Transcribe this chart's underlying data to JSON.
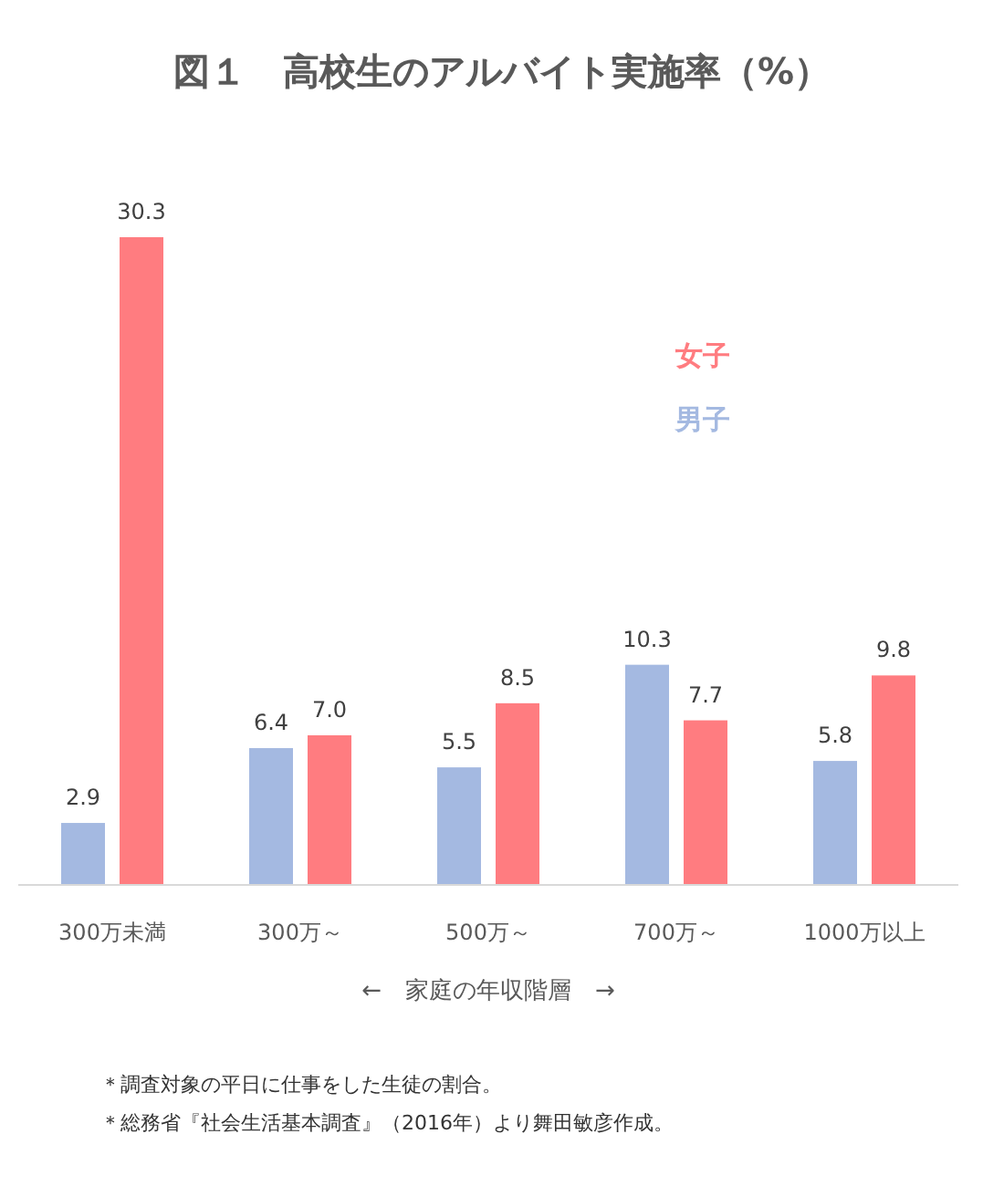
{
  "chart_data": {
    "type": "bar",
    "title": "図１　高校生のアルバイト実施率（%）",
    "xlabel": "←　家庭の年収階層　→",
    "categories": [
      "300万未満",
      "300万～",
      "500万～",
      "700万～",
      "1000万以上"
    ],
    "series": [
      {
        "name": "男子",
        "color": "#a4b9e1",
        "values": [
          2.9,
          6.4,
          5.5,
          10.3,
          5.8
        ],
        "value_labels": [
          "2.9",
          "6.4",
          "5.5",
          "10.3",
          "5.8"
        ]
      },
      {
        "name": "女子",
        "color": "#ff7c80",
        "values": [
          30.3,
          7.0,
          8.5,
          7.7,
          9.8
        ],
        "value_labels": [
          "30.3",
          "7.0",
          "8.5",
          "7.7",
          "9.8"
        ]
      }
    ],
    "legend": "top right",
    "annotations": [
      "＊調査対象の平日に仕事をした生徒の割合。",
      "＊総務省『社会生活基本調査』（2016年）より舞田敏彦作成。"
    ]
  }
}
